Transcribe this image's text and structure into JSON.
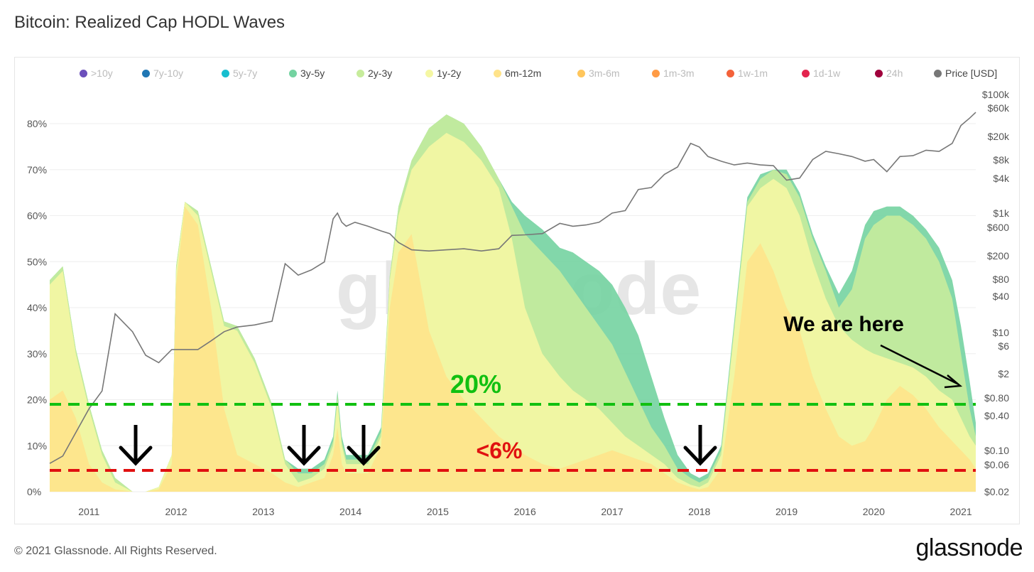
{
  "title": "Bitcoin: Realized Cap HODL Waves",
  "footer": "© 2021 Glassnode. All Rights Reserved.",
  "brand": "glassnode",
  "watermark": "glassnode",
  "legend": [
    {
      "label": ">10y",
      "color": "#6b4fbb",
      "active": false
    },
    {
      "label": "7y-10y",
      "color": "#1f77b4",
      "active": false
    },
    {
      "label": "5y-7y",
      "color": "#17becf",
      "active": false
    },
    {
      "label": "3y-5y",
      "color": "#74d3a1",
      "active": true
    },
    {
      "label": "2y-3y",
      "color": "#c7ec9c",
      "active": true
    },
    {
      "label": "1y-2y",
      "color": "#f5f7a3",
      "active": true
    },
    {
      "label": "6m-12m",
      "color": "#ffe38a",
      "active": true
    },
    {
      "label": "3m-6m",
      "color": "#ffc65c",
      "active": false
    },
    {
      "label": "1m-3m",
      "color": "#ff9b45",
      "active": false
    },
    {
      "label": "1w-1m",
      "color": "#f4623a",
      "active": false
    },
    {
      "label": "1d-1w",
      "color": "#e3244e",
      "active": false
    },
    {
      "label": "24h",
      "color": "#a0003c",
      "active": false
    },
    {
      "label": "Price [USD]",
      "color": "#777777",
      "active": true
    }
  ],
  "annotations": {
    "green_line_label": "20%",
    "red_line_label": "<6%",
    "pointer_label": "We are here"
  },
  "colors": {
    "green_line": "#11c011",
    "red_line": "#e01010",
    "arrow": "#000000",
    "price_line": "#777777"
  },
  "chart_data": {
    "type": "area",
    "title": "Bitcoin: Realized Cap HODL Waves",
    "x_ticks": [
      "2011",
      "2012",
      "2013",
      "2014",
      "2015",
      "2016",
      "2017",
      "2018",
      "2019",
      "2020",
      "2021"
    ],
    "xlim": [
      2010.55,
      2021.17
    ],
    "ylim_left": [
      0,
      85
    ],
    "y_left_ticks": [
      "0%",
      "10%",
      "20%",
      "30%",
      "40%",
      "50%",
      "60%",
      "70%",
      "80%"
    ],
    "y_right_ticks": [
      "$100k",
      "$60k",
      "$20k",
      "$8k",
      "$4k",
      "$1k",
      "$600",
      "$200",
      "$80",
      "$40",
      "$10",
      "$6",
      "$2",
      "$0.80",
      "$0.40",
      "$0.10",
      "$0.06",
      "$0.02"
    ],
    "y_right_scale": "log",
    "x": [
      2010.55,
      2010.7,
      2010.85,
      2011.0,
      2011.15,
      2011.3,
      2011.5,
      2011.65,
      2011.8,
      2011.95,
      2012.0,
      2012.1,
      2012.25,
      2012.4,
      2012.55,
      2012.7,
      2012.9,
      2013.1,
      2013.25,
      2013.4,
      2013.55,
      2013.7,
      2013.8,
      2013.85,
      2013.9,
      2013.95,
      2014.05,
      2014.2,
      2014.35,
      2014.45,
      2014.55,
      2014.7,
      2014.9,
      2015.1,
      2015.3,
      2015.5,
      2015.7,
      2015.85,
      2016.0,
      2016.2,
      2016.4,
      2016.55,
      2016.7,
      2016.85,
      2017.0,
      2017.15,
      2017.3,
      2017.45,
      2017.6,
      2017.75,
      2017.9,
      2018.0,
      2018.1,
      2018.25,
      2018.4,
      2018.55,
      2018.7,
      2018.85,
      2019.0,
      2019.15,
      2019.3,
      2019.45,
      2019.6,
      2019.75,
      2019.9,
      2020.0,
      2020.15,
      2020.3,
      2020.45,
      2020.6,
      2020.75,
      2020.9,
      2021.0,
      2021.1,
      2021.17
    ],
    "series": [
      {
        "name": "6m-12m",
        "values": [
          20,
          22,
          16,
          6,
          2,
          0.5,
          0,
          0,
          0.5,
          6,
          45,
          62,
          58,
          40,
          18,
          8,
          6,
          4,
          2,
          1,
          2,
          3,
          8,
          14,
          6,
          4,
          4,
          4,
          10,
          40,
          52,
          56,
          35,
          25,
          20,
          16,
          12,
          10,
          8,
          6,
          5,
          6,
          7,
          8,
          9,
          8,
          7,
          6,
          4,
          2,
          1,
          0.5,
          1,
          5,
          25,
          50,
          54,
          48,
          40,
          35,
          25,
          18,
          12,
          10,
          11,
          14,
          20,
          23,
          21,
          18,
          14,
          11,
          9,
          7,
          5
        ]
      },
      {
        "name": "1y-2y",
        "values": [
          45,
          48,
          30,
          18,
          8,
          2,
          0,
          0,
          1,
          8,
          48,
          63,
          60,
          48,
          36,
          35,
          28,
          18,
          6,
          2,
          3,
          5,
          10,
          20,
          10,
          6,
          6,
          6,
          12,
          46,
          60,
          70,
          75,
          78,
          76,
          72,
          66,
          55,
          40,
          30,
          25,
          22,
          20,
          18,
          15,
          12,
          10,
          8,
          6,
          3,
          1.5,
          1,
          2,
          8,
          35,
          62,
          66,
          68,
          66,
          60,
          50,
          42,
          36,
          33,
          31,
          30,
          29,
          28,
          27,
          25,
          22,
          20,
          16,
          12,
          10
        ]
      },
      {
        "name": "2y-3y",
        "values": [
          46,
          49,
          31,
          19,
          9,
          3,
          0,
          0,
          1,
          8,
          49,
          63,
          61,
          49,
          37,
          36,
          29,
          19,
          7,
          4,
          4,
          6,
          11,
          21,
          11,
          7,
          7,
          7,
          13,
          47,
          62,
          72,
          79,
          82,
          80,
          75,
          68,
          62,
          56,
          52,
          48,
          44,
          40,
          36,
          32,
          26,
          20,
          14,
          10,
          5,
          3,
          2,
          3,
          9,
          36,
          63,
          68,
          70,
          69,
          64,
          55,
          48,
          40,
          44,
          55,
          58,
          60,
          60,
          58,
          55,
          50,
          42,
          30,
          18,
          12
        ]
      },
      {
        "name": "3y-5y",
        "values": [
          46,
          49,
          31,
          19,
          9,
          3,
          0,
          0,
          1,
          8,
          49,
          63,
          61,
          49,
          37,
          36,
          29,
          19,
          7,
          5,
          5,
          7,
          12,
          22,
          12,
          8,
          8,
          8,
          14,
          47,
          62,
          72,
          79,
          82,
          80,
          75,
          68,
          63,
          60,
          57,
          53,
          52,
          50,
          48,
          45,
          40,
          34,
          25,
          16,
          8,
          4,
          3,
          4,
          10,
          37,
          64,
          69,
          70,
          70,
          65,
          56,
          49,
          43,
          48,
          58,
          61,
          62,
          62,
          60,
          57,
          53,
          46,
          36,
          24,
          15
        ]
      },
      {
        "name": "Price [USD]",
        "values": [
          0.06,
          0.08,
          0.2,
          0.5,
          1,
          20,
          10,
          4,
          3,
          5,
          5,
          5,
          5,
          7,
          10,
          12,
          13,
          15,
          140,
          90,
          110,
          150,
          800,
          1000,
          700,
          600,
          700,
          600,
          500,
          450,
          320,
          240,
          230,
          240,
          250,
          230,
          250,
          420,
          430,
          450,
          670,
          600,
          630,
          700,
          1000,
          1100,
          2500,
          2700,
          4500,
          6000,
          15000,
          13000,
          9000,
          7500,
          6500,
          7000,
          6500,
          6300,
          3600,
          3900,
          8000,
          11000,
          10000,
          9000,
          7500,
          8000,
          5000,
          9000,
          9300,
          11500,
          11000,
          15000,
          30000,
          40000,
          50000
        ]
      }
    ]
  }
}
